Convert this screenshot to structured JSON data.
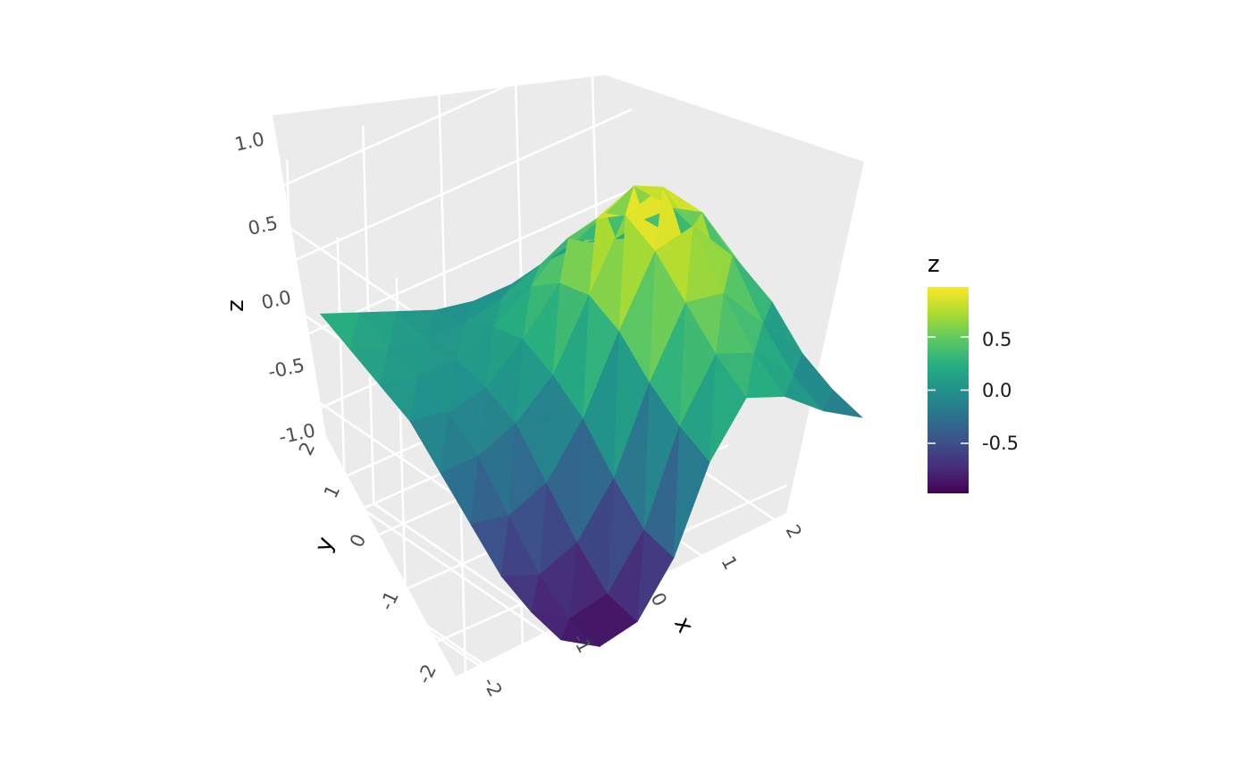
{
  "chart_data": {
    "type": "surface3d",
    "x_axis": {
      "label": "x",
      "ticks": [
        "-2",
        "-1",
        "0",
        "1",
        "2"
      ],
      "range": [
        -2,
        2
      ]
    },
    "y_axis": {
      "label": "y",
      "ticks": [
        "-2",
        "-1",
        "0",
        "1",
        "2"
      ],
      "range": [
        -2,
        2
      ]
    },
    "z_axis": {
      "label": "z",
      "ticks": [
        "-1.0",
        "-0.5",
        "0.0",
        "0.5",
        "1.0"
      ],
      "range": [
        -1,
        1
      ]
    },
    "surface": {
      "x": [
        -2,
        -1.5,
        -1,
        -0.5,
        0,
        0.5,
        1,
        1.5,
        2
      ],
      "y": [
        -2,
        -1.5,
        -1,
        -0.5,
        0,
        0.5,
        1,
        1.5,
        2
      ],
      "z": [
        [
          -0.75,
          -0.9,
          -0.85,
          -0.55,
          -0.05,
          0.25,
          0.15,
          -0.05,
          -0.2
        ],
        [
          -0.7,
          -0.85,
          -0.8,
          -0.5,
          0.05,
          0.4,
          0.3,
          0.05,
          -0.15
        ],
        [
          -0.6,
          -0.7,
          -0.6,
          -0.3,
          0.2,
          0.6,
          0.55,
          0.25,
          -0.05
        ],
        [
          -0.4,
          -0.45,
          -0.35,
          -0.05,
          0.4,
          0.8,
          0.85,
          0.55,
          0.15
        ],
        [
          -0.2,
          -0.2,
          -0.1,
          0.1,
          0.5,
          0.9,
          0.97,
          0.7,
          0.25
        ],
        [
          0.0,
          -0.05,
          0.0,
          0.2,
          0.45,
          0.75,
          0.85,
          0.6,
          0.25
        ],
        [
          0.1,
          0.05,
          0.05,
          0.15,
          0.3,
          0.5,
          0.55,
          0.4,
          0.15
        ],
        [
          0.2,
          0.1,
          0.05,
          0.05,
          0.1,
          0.2,
          0.25,
          0.15,
          0.05
        ],
        [
          0.3,
          0.2,
          0.1,
          0.0,
          -0.05,
          -0.05,
          0.0,
          0.0,
          -0.05
        ]
      ]
    },
    "color_scale": "viridis",
    "legend": {
      "title": "z",
      "ticks": [
        "0.5",
        "0.0",
        "-0.5"
      ],
      "tick_values": [
        0.5,
        0.0,
        -0.5
      ],
      "range": [
        -0.97,
        0.97
      ],
      "position": "right"
    },
    "grid": true
  }
}
